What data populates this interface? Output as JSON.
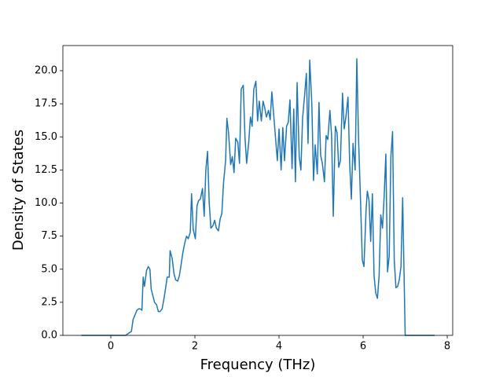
{
  "chart_data": {
    "type": "line",
    "xlabel": "Frequency (THz)",
    "ylabel": "Density of States",
    "x": [
      -0.7,
      0.35,
      0.44,
      0.49,
      0.53,
      0.57,
      0.62,
      0.66,
      0.7,
      0.74,
      0.77,
      0.8,
      0.85,
      0.89,
      0.93,
      0.96,
      1.0,
      1.04,
      1.09,
      1.13,
      1.17,
      1.22,
      1.26,
      1.3,
      1.34,
      1.39,
      1.41,
      1.46,
      1.5,
      1.54,
      1.59,
      1.63,
      1.67,
      1.71,
      1.76,
      1.8,
      1.84,
      1.89,
      1.92,
      1.96,
      2.01,
      2.05,
      2.09,
      2.13,
      2.18,
      2.22,
      2.26,
      2.3,
      2.34,
      2.38,
      2.43,
      2.47,
      2.51,
      2.56,
      2.6,
      2.64,
      2.68,
      2.73,
      2.76,
      2.8,
      2.85,
      2.89,
      2.93,
      2.97,
      3.02,
      3.06,
      3.1,
      3.15,
      3.19,
      3.23,
      3.28,
      3.32,
      3.36,
      3.4,
      3.45,
      3.49,
      3.53,
      3.58,
      3.62,
      3.66,
      3.7,
      3.75,
      3.79,
      3.83,
      3.88,
      3.92,
      3.96,
      4.0,
      4.05,
      4.09,
      4.13,
      4.18,
      4.22,
      4.26,
      4.31,
      4.35,
      4.39,
      4.43,
      4.48,
      4.52,
      4.56,
      4.61,
      4.65,
      4.69,
      4.73,
      4.78,
      4.82,
      4.86,
      4.91,
      4.95,
      4.99,
      5.03,
      5.08,
      5.12,
      5.16,
      5.21,
      5.25,
      5.29,
      5.34,
      5.38,
      5.42,
      5.46,
      5.51,
      5.55,
      5.59,
      5.64,
      5.68,
      5.72,
      5.76,
      5.81,
      5.85,
      5.89,
      5.94,
      5.98,
      6.02,
      6.07,
      6.1,
      6.14,
      6.18,
      6.22,
      6.26,
      6.3,
      6.34,
      6.38,
      6.42,
      6.46,
      6.5,
      6.54,
      6.58,
      6.62,
      6.66,
      6.7,
      6.74,
      6.78,
      6.82,
      6.86,
      6.9,
      6.94,
      7.0,
      7.7
    ],
    "series": [
      {
        "color": "#1f77b4",
        "values": [
          0,
          0,
          0.2,
          0.3,
          1.2,
          1.5,
          1.9,
          2.0,
          2.0,
          1.9,
          4.4,
          3.7,
          4.9,
          5.2,
          5.0,
          3.5,
          3.0,
          2.5,
          2.3,
          1.8,
          1.8,
          2.0,
          2.7,
          3.5,
          4.4,
          4.4,
          6.4,
          5.8,
          4.7,
          4.2,
          4.1,
          4.5,
          5.3,
          6.2,
          7.0,
          7.5,
          7.3,
          7.8,
          10.7,
          8.0,
          7.3,
          9.8,
          10.2,
          10.3,
          11.1,
          9.0,
          12.5,
          13.9,
          10.0,
          8.1,
          8.3,
          8.7,
          8.1,
          7.9,
          8.8,
          9.2,
          11.5,
          13.2,
          16.4,
          15.3,
          12.9,
          13.5,
          12.3,
          14.9,
          14.6,
          13.0,
          18.6,
          18.9,
          15.0,
          13.0,
          14.6,
          16.5,
          15.8,
          18.6,
          19.2,
          16.2,
          17.7,
          16.2,
          17.7,
          17.2,
          16.5,
          17.0,
          16.3,
          18.4,
          16.4,
          14.8,
          13.2,
          15.6,
          12.5,
          15.7,
          13.2,
          15.8,
          16.1,
          17.8,
          12.6,
          17.1,
          11.6,
          19.1,
          13.5,
          12.5,
          16.4,
          18.2,
          19.8,
          14.5,
          20.8,
          17.5,
          11.7,
          14.4,
          12.2,
          17.6,
          13.6,
          13.0,
          11.6,
          15.1,
          14.8,
          17.0,
          15.1,
          9.0,
          15.8,
          15.3,
          12.7,
          13.2,
          18.3,
          15.6,
          16.5,
          18.0,
          13.0,
          10.3,
          14.5,
          12.5,
          20.9,
          15.0,
          10.0,
          5.7,
          5.2,
          9.5,
          10.9,
          10.2,
          7.1,
          10.7,
          4.5,
          3.2,
          2.8,
          4.5,
          9.1,
          8.1,
          10.5,
          13.7,
          4.8,
          6.0,
          13.5,
          15.4,
          5.7,
          3.6,
          3.7,
          4.2,
          5.2,
          10.4,
          0,
          0
        ]
      }
    ],
    "xlim": [
      -1.14,
      8.13
    ],
    "ylim": [
      0,
      21.9
    ],
    "xticks": [
      0,
      2,
      4,
      6,
      8
    ],
    "yticks": [
      {
        "value": 0,
        "label": "0.0"
      },
      {
        "value": 2.5,
        "label": "2.5"
      },
      {
        "value": 5,
        "label": "5.0"
      },
      {
        "value": 7.5,
        "label": "7.5"
      },
      {
        "value": 10,
        "label": "10.0"
      },
      {
        "value": 12.5,
        "label": "12.5"
      },
      {
        "value": 15,
        "label": "15.0"
      },
      {
        "value": 17.5,
        "label": "17.5"
      },
      {
        "value": 20,
        "label": "20.0"
      }
    ]
  }
}
